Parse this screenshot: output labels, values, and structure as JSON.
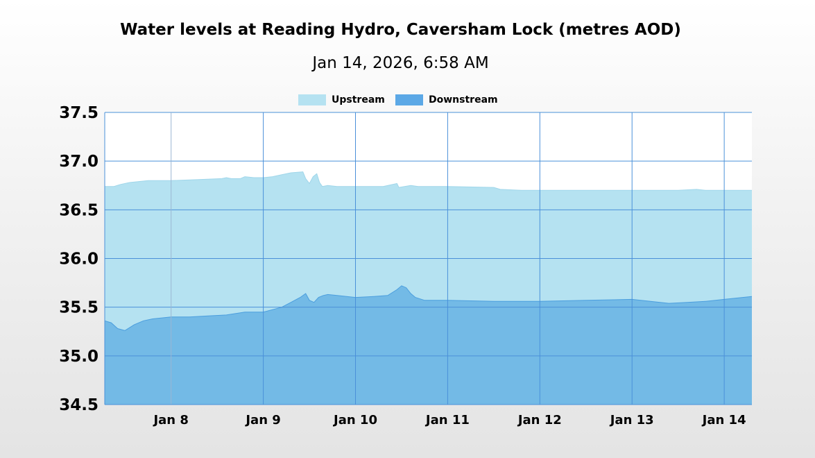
{
  "chart_data": {
    "type": "area",
    "title": "Water levels at Reading Hydro, Caversham Lock (metres AOD)",
    "subtitle": "Jan 14, 2026, 6:58 AM",
    "xlabel": "",
    "ylabel": "",
    "x_range_days": [
      7.28,
      14.3
    ],
    "ylim": [
      34.5,
      37.5
    ],
    "y_ticks": [
      "37.5",
      "37.0",
      "36.5",
      "36.0",
      "35.5",
      "35.0",
      "34.5"
    ],
    "y_tick_values": [
      37.5,
      37.0,
      36.5,
      36.0,
      35.5,
      35.0,
      34.5
    ],
    "x_ticks": [
      "Jan 8",
      "Jan 9",
      "Jan 10",
      "Jan 11",
      "Jan 12",
      "Jan 13",
      "Jan 14"
    ],
    "x_tick_values": [
      8,
      9,
      10,
      11,
      12,
      13,
      14
    ],
    "grid": true,
    "legend_position": "top-center",
    "series": [
      {
        "name": "Upstream",
        "color": "#b5e2f1",
        "x": [
          7.28,
          7.38,
          7.45,
          7.55,
          7.75,
          8.0,
          8.3,
          8.55,
          8.6,
          8.65,
          8.75,
          8.8,
          8.9,
          9.0,
          9.1,
          9.2,
          9.3,
          9.43,
          9.46,
          9.5,
          9.54,
          9.58,
          9.61,
          9.64,
          9.7,
          9.8,
          10.0,
          10.3,
          10.45,
          10.47,
          10.6,
          10.68,
          11.0,
          11.5,
          11.57,
          11.8,
          12.0,
          12.5,
          13.0,
          13.5,
          13.7,
          13.8,
          14.0,
          14.3
        ],
        "y": [
          36.74,
          36.74,
          36.76,
          36.78,
          36.8,
          36.8,
          36.81,
          36.82,
          36.83,
          36.82,
          36.82,
          36.84,
          36.83,
          36.83,
          36.84,
          36.86,
          36.88,
          36.89,
          36.82,
          36.77,
          36.84,
          36.87,
          36.78,
          36.74,
          36.75,
          36.74,
          36.74,
          36.74,
          36.77,
          36.73,
          36.75,
          36.74,
          36.74,
          36.73,
          36.71,
          36.7,
          36.7,
          36.7,
          36.7,
          36.7,
          36.71,
          36.7,
          36.7,
          36.7
        ]
      },
      {
        "name": "Downstream",
        "color": "#5ba8e6",
        "x": [
          7.28,
          7.35,
          7.42,
          7.5,
          7.6,
          7.7,
          7.8,
          8.0,
          8.2,
          8.4,
          8.6,
          8.8,
          9.0,
          9.2,
          9.3,
          9.4,
          9.46,
          9.5,
          9.55,
          9.6,
          9.65,
          9.7,
          9.8,
          10.0,
          10.2,
          10.35,
          10.45,
          10.5,
          10.55,
          10.6,
          10.65,
          10.75,
          11.0,
          11.5,
          12.0,
          12.5,
          13.0,
          13.2,
          13.4,
          13.6,
          13.8,
          14.0,
          14.2,
          14.3
        ],
        "y": [
          35.36,
          35.34,
          35.28,
          35.26,
          35.32,
          35.36,
          35.38,
          35.4,
          35.4,
          35.41,
          35.42,
          35.45,
          35.45,
          35.5,
          35.55,
          35.6,
          35.64,
          35.57,
          35.55,
          35.6,
          35.62,
          35.63,
          35.62,
          35.6,
          35.61,
          35.62,
          35.68,
          35.72,
          35.7,
          35.64,
          35.6,
          35.57,
          35.57,
          35.56,
          35.56,
          35.57,
          35.58,
          35.56,
          35.54,
          35.55,
          35.56,
          35.58,
          35.6,
          35.61
        ]
      }
    ]
  }
}
